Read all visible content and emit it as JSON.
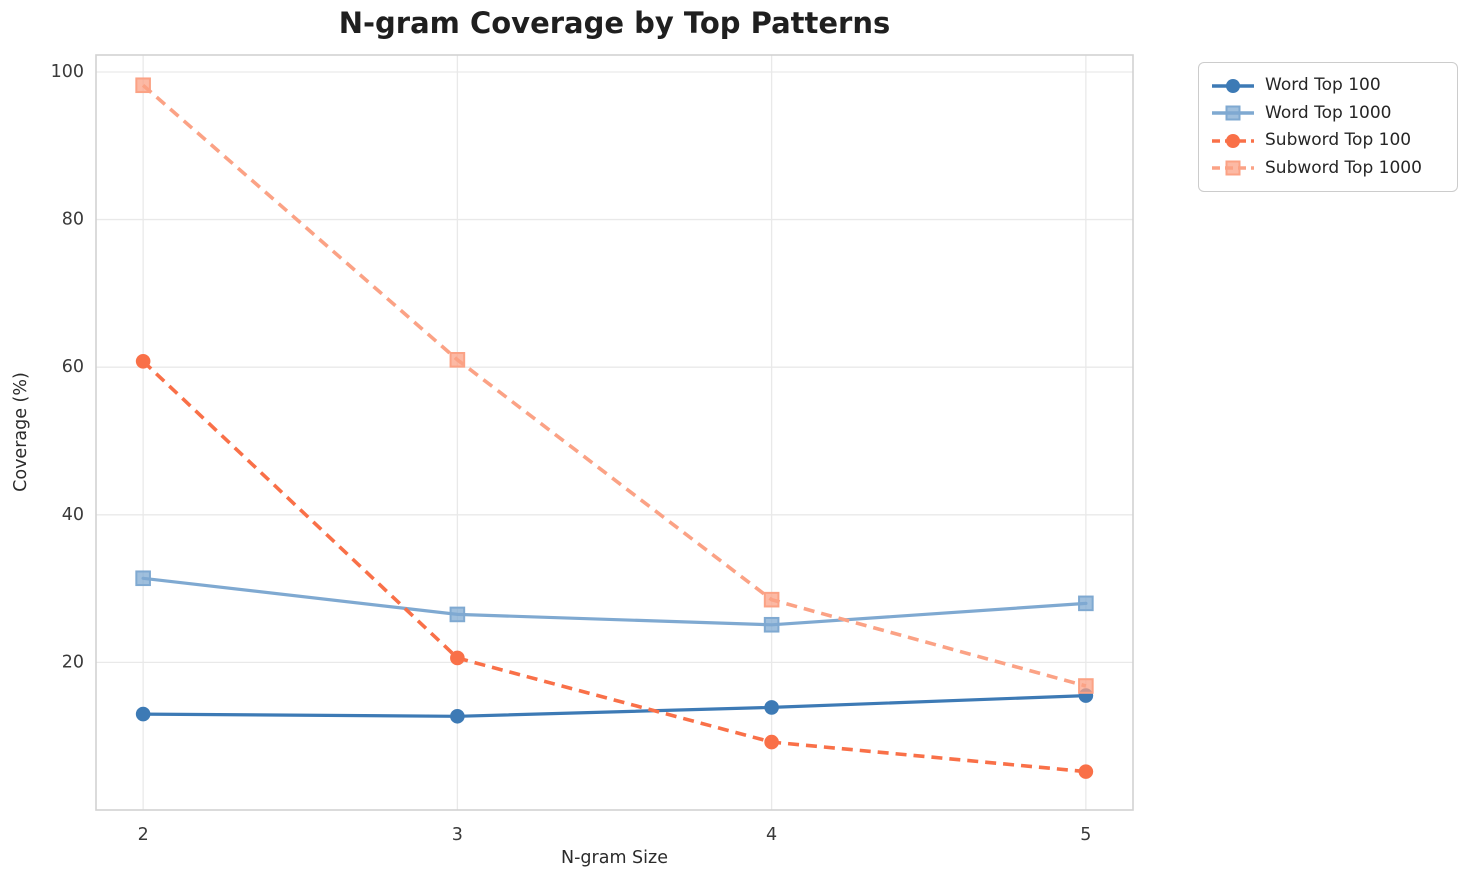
{
  "chart_data": {
    "type": "line",
    "title": "N-gram Coverage by Top Patterns",
    "xlabel": "N-gram Size",
    "ylabel": "Coverage (%)",
    "x": [
      2,
      3,
      4,
      5
    ],
    "xtick_labels": [
      "2",
      "3",
      "4",
      "5"
    ],
    "yticks": [
      20,
      40,
      60,
      80,
      100
    ],
    "xlim": [
      1.85,
      5.15
    ],
    "ylim": [
      0,
      102.3
    ],
    "grid": true,
    "legend_position": "outside-top-right",
    "series": [
      {
        "name": "Word Top 100",
        "values": [
          13.0,
          12.7,
          13.9,
          15.5
        ],
        "color": "#3d7ab5",
        "marker": "circle",
        "dashed": false
      },
      {
        "name": "Word Top 1000",
        "values": [
          31.4,
          26.5,
          25.1,
          28.0
        ],
        "color": "#7fa9d1",
        "marker": "square",
        "dashed": false
      },
      {
        "name": "Subword Top 100",
        "values": [
          60.8,
          20.6,
          9.2,
          5.2
        ],
        "color": "#f97048",
        "marker": "circle",
        "dashed": true
      },
      {
        "name": "Subword Top 1000",
        "values": [
          98.2,
          61.0,
          28.5,
          16.8
        ],
        "color": "#fba285",
        "marker": "square",
        "dashed": true
      }
    ],
    "style": {
      "grid_color": "#e9e9e9",
      "spine_color": "#d2d2d2",
      "tick_color": "#3a3a3a",
      "background": "#ffffff"
    }
  }
}
